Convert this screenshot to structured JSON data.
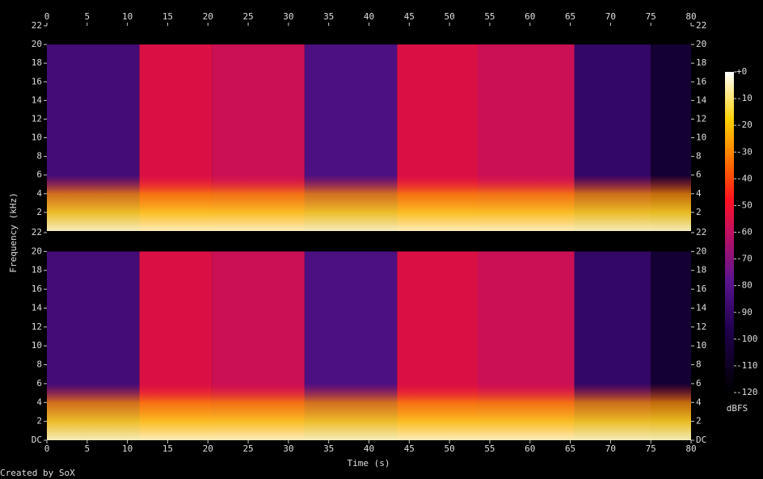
{
  "chart_data": {
    "type": "spectrogram",
    "xlabel": "Time (s)",
    "ylabel": "Frequency (kHz)",
    "xlim": [
      0,
      80
    ],
    "xticks": [
      0,
      5,
      10,
      15,
      20,
      25,
      30,
      35,
      40,
      45,
      50,
      55,
      60,
      65,
      70,
      75,
      80
    ],
    "panels": [
      {
        "ylim": [
          0,
          22
        ],
        "yticks": [
          2,
          4,
          6,
          8,
          10,
          12,
          14,
          16,
          18,
          20,
          22
        ]
      },
      {
        "ylim": [
          0,
          22
        ],
        "yticks": [
          {
            "value": 0,
            "label": "DC"
          },
          2,
          4,
          6,
          8,
          10,
          12,
          14,
          16,
          18,
          20,
          22
        ]
      }
    ],
    "max_freq": 20,
    "segments": [
      {
        "start": 0,
        "end": 11.5,
        "level": -85
      },
      {
        "start": 11.5,
        "end": 20.5,
        "level": -55
      },
      {
        "start": 20.5,
        "end": 32,
        "level": -58
      },
      {
        "start": 32,
        "end": 43.5,
        "level": -82
      },
      {
        "start": 43.5,
        "end": 53.5,
        "level": -55
      },
      {
        "start": 53.5,
        "end": 65.5,
        "level": -58
      },
      {
        "start": 65.5,
        "end": 75,
        "level": -90
      },
      {
        "start": 75,
        "end": 80,
        "level": -105
      }
    ],
    "colorbar": {
      "label": "dBFS",
      "zlim": [
        -120,
        0
      ],
      "ticks": [
        {
          "value": 0,
          "label": "+0"
        },
        -10,
        -20,
        -30,
        -40,
        -50,
        -60,
        -70,
        -80,
        -90,
        -100,
        -110,
        -120
      ]
    },
    "credit": "Created by SoX"
  }
}
